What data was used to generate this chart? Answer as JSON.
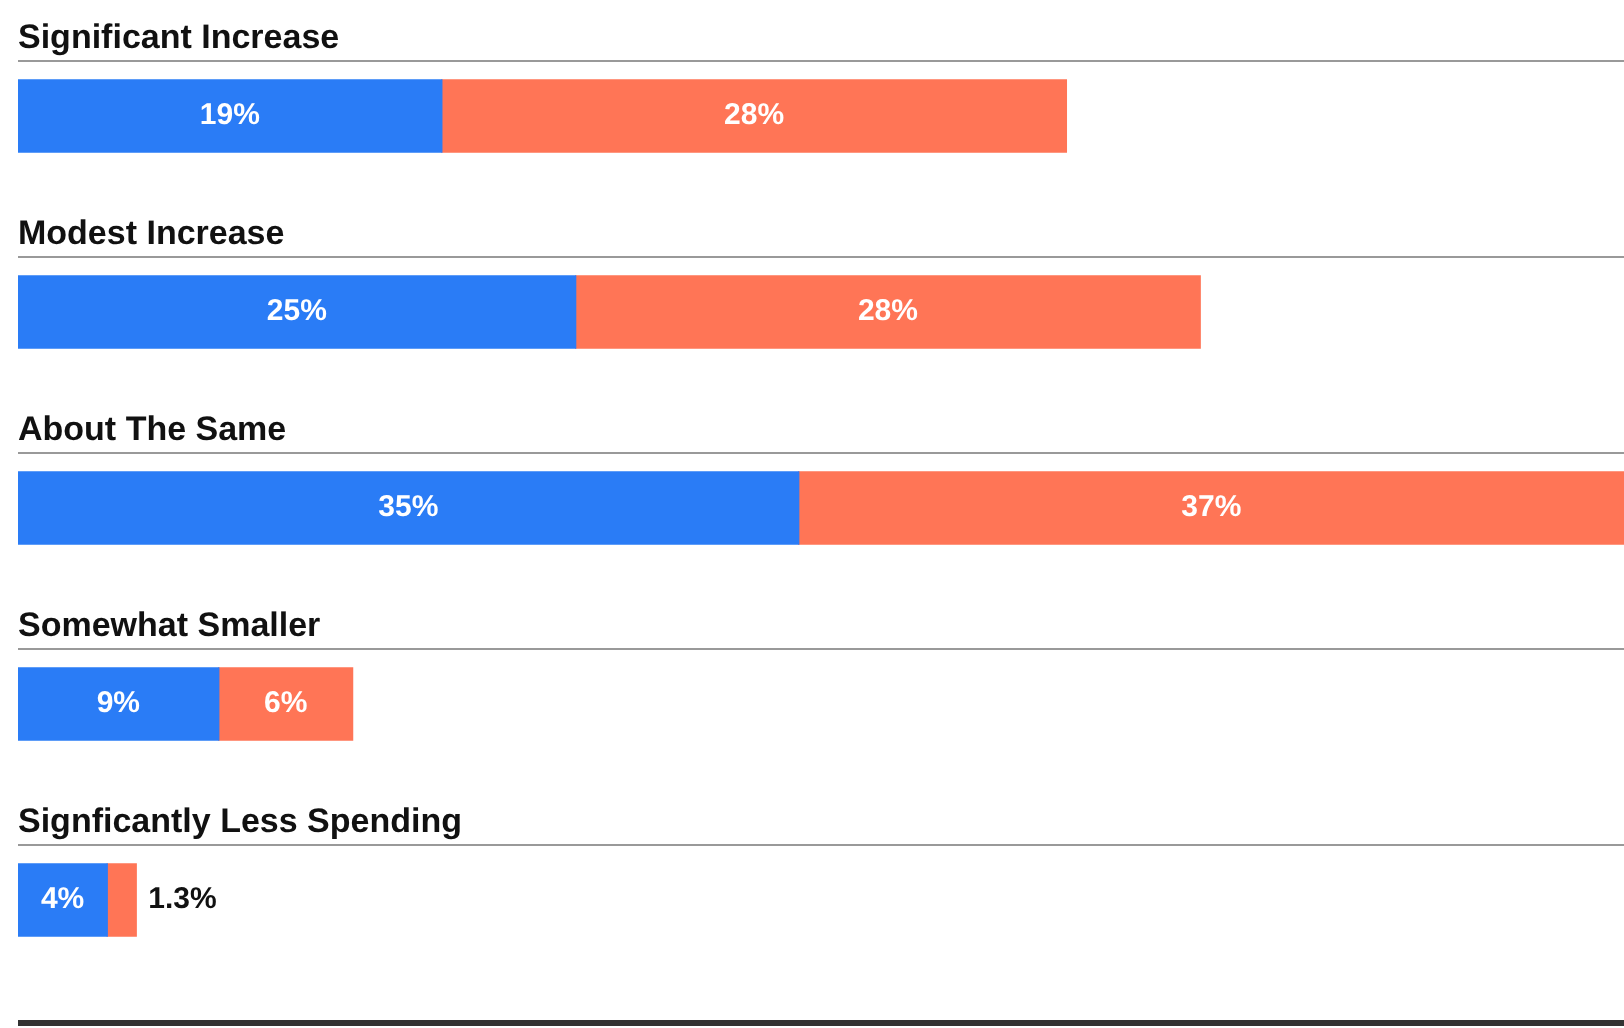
{
  "chart_data": {
    "type": "bar",
    "orientation": "horizontal",
    "stacked": true,
    "tick_labels": false,
    "legend": false,
    "categories": [
      "Significant Increase",
      "Modest Increase",
      "About The Same",
      "Somewhat Smaller",
      "Signficantly Less Spending"
    ],
    "xlim": [
      0,
      72
    ],
    "series": [
      {
        "color": "#2a7cf6",
        "values": [
          19,
          25,
          35,
          9,
          4
        ],
        "value_labels": [
          "19%",
          "25%",
          "35%",
          "9%",
          "4%"
        ]
      },
      {
        "color": "#ff7556",
        "values": [
          28,
          28,
          37,
          6,
          1.3
        ],
        "value_labels": [
          "28%",
          "28%",
          "37%",
          "6%",
          "1.3%"
        ]
      }
    ]
  }
}
